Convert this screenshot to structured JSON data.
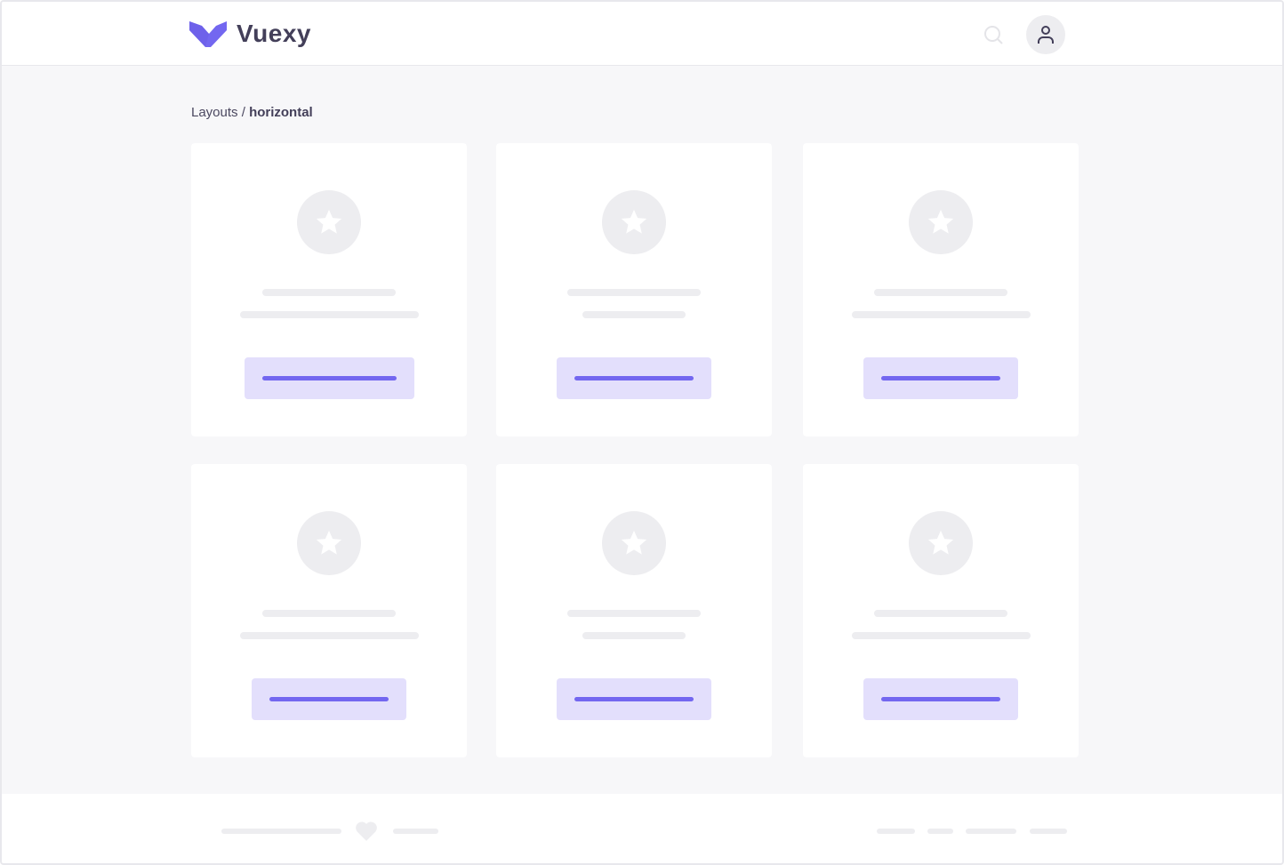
{
  "header": {
    "brand": "Vuexy",
    "logo_icon": "vuexy-logo",
    "search_icon": "search-icon",
    "avatar_icon": "user-icon"
  },
  "breadcrumb": {
    "parent": "Layouts",
    "separator": " / ",
    "current": "horizontal"
  },
  "colors": {
    "primary": "#7367f0",
    "primary_light": "#e3dffc",
    "skeleton": "#ededf0",
    "background": "#f7f7f9",
    "text": "#433f59"
  },
  "cards": [
    {
      "icon": "star-icon"
    },
    {
      "icon": "star-icon"
    },
    {
      "icon": "star-icon"
    },
    {
      "icon": "star-icon"
    },
    {
      "icon": "star-icon"
    },
    {
      "icon": "star-icon"
    }
  ],
  "footer": {
    "icon": "heart-icon"
  }
}
